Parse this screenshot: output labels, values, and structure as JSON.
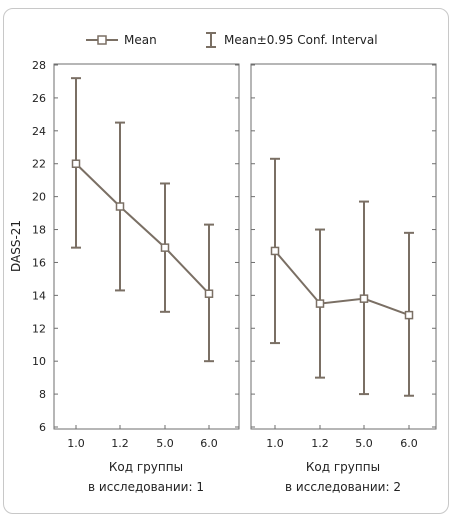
{
  "legend": {
    "mean_label": "Mean",
    "ci_label": "Mean±0.95 Conf. Interval"
  },
  "colors": {
    "series": "#7a6f64",
    "frame": "#6e6e6e",
    "border": "#c8c8c8"
  },
  "chart_data": [
    {
      "type": "line",
      "ylabel": "DASS-21",
      "xlabel": [
        "Код группы",
        "в исследовании: 1"
      ],
      "categories": [
        "1.0",
        "1.2",
        "5.0",
        "6.0"
      ],
      "ylim": [
        6,
        28
      ],
      "yticks": [
        "6",
        "8",
        "10",
        "12",
        "14",
        "16",
        "18",
        "20",
        "22",
        "24",
        "26",
        "28"
      ],
      "mean": [
        22.0,
        19.4,
        16.9,
        14.1
      ],
      "ci_upper": [
        27.2,
        24.5,
        20.8,
        18.3
      ],
      "ci_lower": [
        16.9,
        14.3,
        13.0,
        10.0
      ]
    },
    {
      "type": "line",
      "ylabel": "",
      "xlabel": [
        "Код группы",
        "в исследовании: 2"
      ],
      "categories": [
        "1.0",
        "1.2",
        "5.0",
        "6.0"
      ],
      "ylim": [
        6,
        28
      ],
      "yticks": [],
      "mean": [
        16.7,
        13.5,
        13.8,
        12.8
      ],
      "ci_upper": [
        22.3,
        18.0,
        19.7,
        17.8
      ],
      "ci_lower": [
        11.1,
        9.0,
        8.0,
        7.9
      ]
    }
  ]
}
